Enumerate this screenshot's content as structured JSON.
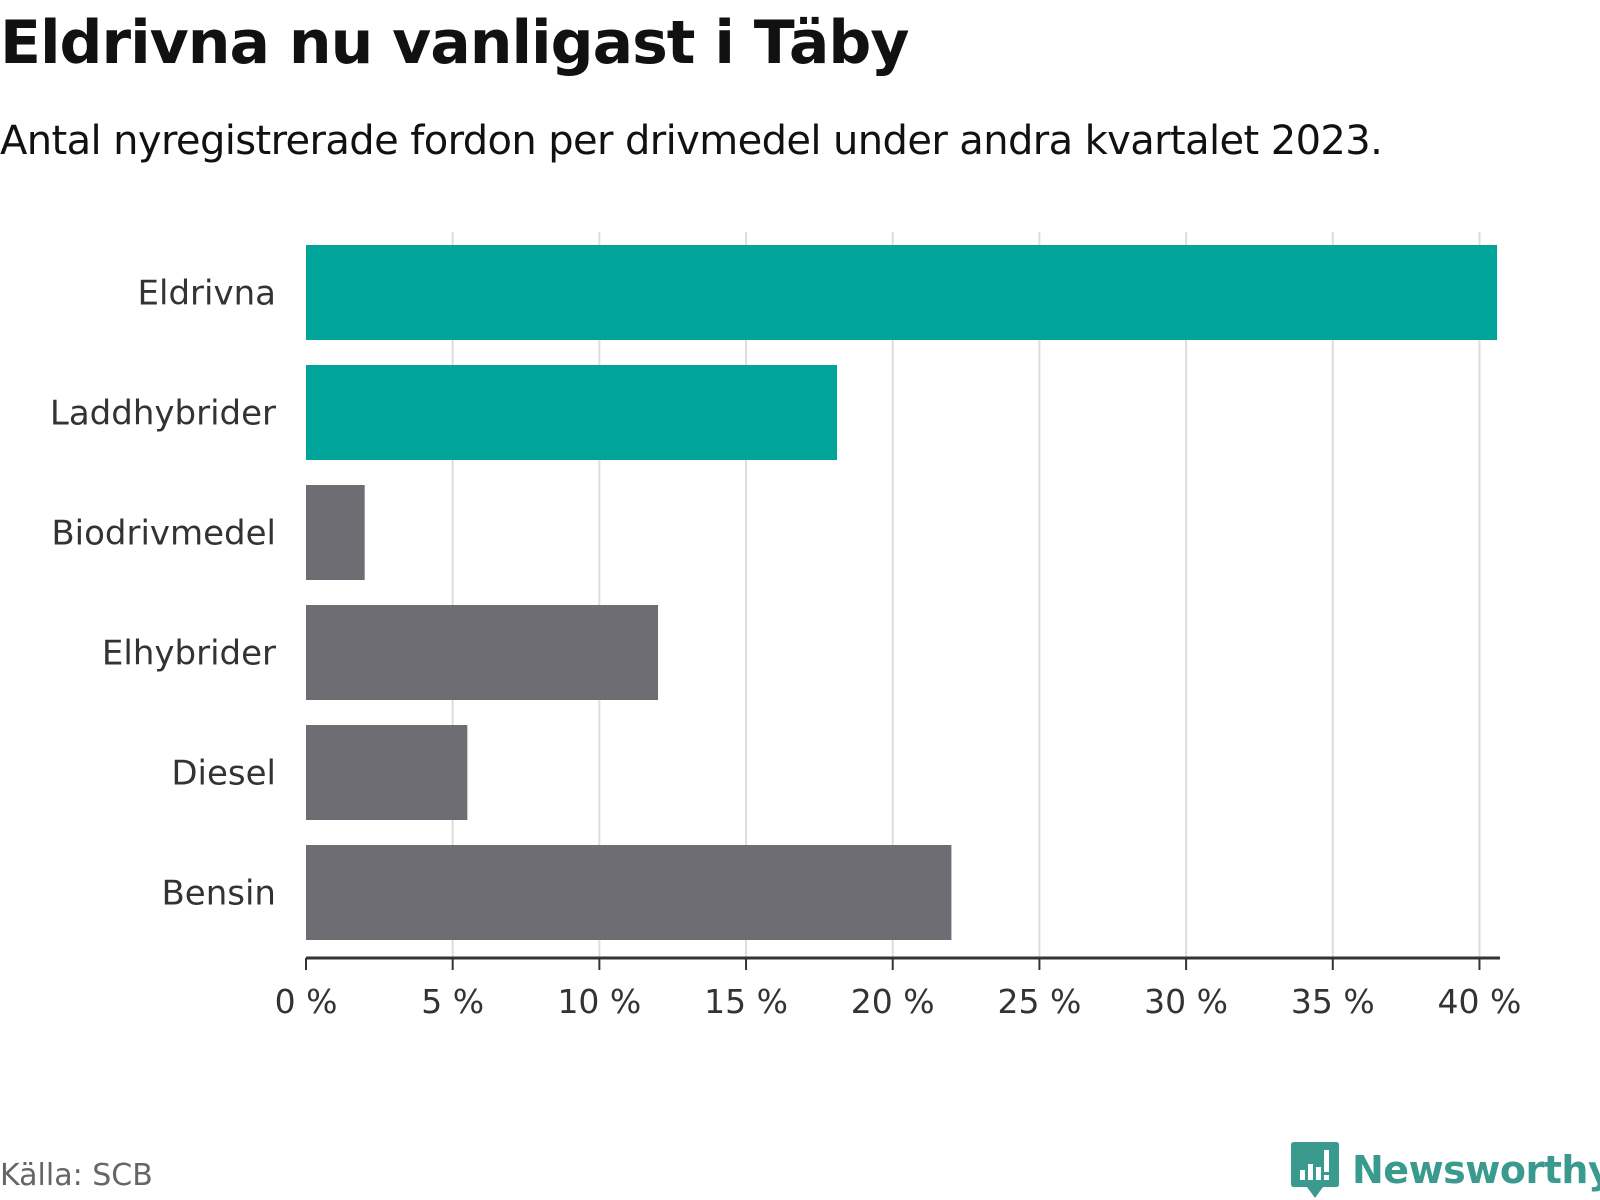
{
  "header": {
    "title": "Eldrivna nu vanligast i Täby",
    "subtitle": "Antal nyregistrerade fordon per drivmedel under andra kvartalet 2023."
  },
  "footer": {
    "source": "Källa: SCB",
    "brand": "Newsworthy"
  },
  "colors": {
    "highlight": "#00a499",
    "neutral": "#6e6d74",
    "grid": "#dddddd",
    "axis": "#333333",
    "brand": "#3a9a8e"
  },
  "chart_data": {
    "type": "bar",
    "orientation": "horizontal",
    "title": "Eldrivna nu vanligast i Täby",
    "subtitle": "Antal nyregistrerade fordon per drivmedel under andra kvartalet 2023.",
    "xlabel": "",
    "ylabel": "",
    "xlim": [
      0,
      40.7
    ],
    "grid": true,
    "unit_suffix": " %",
    "ticks": [
      0,
      5,
      10,
      15,
      20,
      25,
      30,
      35,
      40
    ],
    "tick_labels": [
      "0 %",
      "5 %",
      "10 %",
      "15 %",
      "20 %",
      "25 %",
      "30 %",
      "35 %",
      "40 %"
    ],
    "categories": [
      "Eldrivna",
      "Laddhybrider",
      "Biodrivmedel",
      "Elhybrider",
      "Diesel",
      "Bensin"
    ],
    "values": [
      40.6,
      18.1,
      2.0,
      12.0,
      5.5,
      22.0
    ],
    "highlighted": [
      true,
      true,
      false,
      false,
      false,
      false
    ]
  }
}
